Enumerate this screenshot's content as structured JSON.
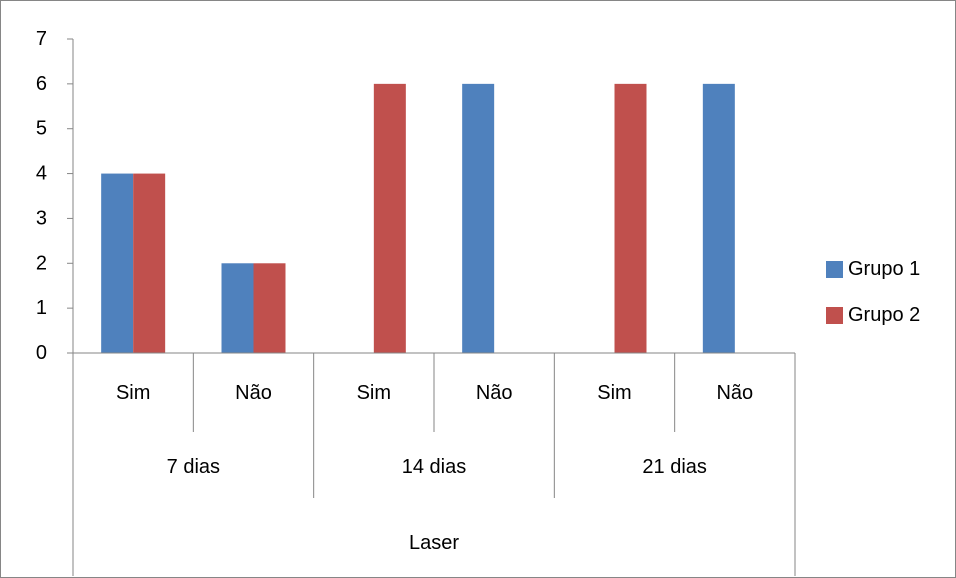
{
  "chart_data": {
    "type": "bar",
    "title": "",
    "ylabel": "",
    "xlabel": "",
    "ylim": [
      0,
      7
    ],
    "yticks": [
      "0",
      "1",
      "2",
      "3",
      "4",
      "5",
      "6",
      "7"
    ],
    "categories": [
      {
        "label": "Sim",
        "group": "7 dias"
      },
      {
        "label": "Não",
        "group": "7 dias"
      },
      {
        "label": "Sim",
        "group": "14 dias"
      },
      {
        "label": "Não",
        "group": "14 dias"
      },
      {
        "label": "Sim",
        "group": "21 dias"
      },
      {
        "label": "Não",
        "group": "21 dias"
      }
    ],
    "groups": [
      "7 dias",
      "14 dias",
      "21 dias"
    ],
    "outer_group": "Laser",
    "series": [
      {
        "name": "Grupo 1",
        "color": "#4F81BD",
        "values": [
          4,
          2,
          0,
          6,
          0,
          6
        ]
      },
      {
        "name": "Grupo 2",
        "color": "#C0504D",
        "values": [
          4,
          2,
          6,
          0,
          6,
          0
        ]
      }
    ],
    "grid": false,
    "legend_position": "right"
  }
}
